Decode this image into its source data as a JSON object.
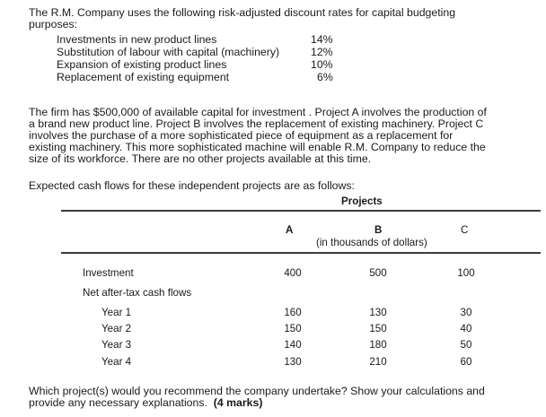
{
  "intro": {
    "line1": "The R.M. Company uses the following risk-adjusted discount rates for capital budgeting",
    "line2": "purposes:"
  },
  "rates": [
    {
      "label": "Investments in new product lines",
      "value": "14%"
    },
    {
      "label": "Substitution of labour with capital (machinery)",
      "value": "12%"
    },
    {
      "label": "Expansion of existing product lines",
      "value": "10%"
    },
    {
      "label": "Replacement of existing equipment",
      "value": "6%"
    }
  ],
  "paragraph": [
    "The firm has $500,000 of available capital for investment .  Project A involves the production of",
    "a brand new product line.  Project B involves the replacement of existing machinery.  Project C",
    "involves the purchase of a more sophisticated piece of equipment as a replacement for",
    "existing machinery.  This more sophisticated machine will enable R.M. Company to reduce the",
    "size of its workforce.  There are no other projects available at this time."
  ],
  "table_intro": "Expected cash flows for these independent projects are as follows:",
  "table": {
    "group_header": "Projects",
    "col_a": "A",
    "col_b": "B",
    "col_c": "C",
    "units": "(in thousands of dollars)",
    "investment_label": "Investment",
    "investment": [
      "400",
      "500",
      "100"
    ],
    "cashflow_label": "Net after-tax cash flows",
    "years": [
      {
        "label": "Year 1",
        "values": [
          "160",
          "130",
          "30"
        ]
      },
      {
        "label": "Year 2",
        "values": [
          "150",
          "150",
          "40"
        ]
      },
      {
        "label": "Year 3",
        "values": [
          "140",
          "180",
          "50"
        ]
      },
      {
        "label": "Year 4",
        "values": [
          "130",
          "210",
          "60"
        ]
      }
    ]
  },
  "question": {
    "line1": "Which project(s) would you recommend the company undertake?  Show your calculations and",
    "line2": "provide any necessary explanations.",
    "marks": "(4 marks)"
  }
}
